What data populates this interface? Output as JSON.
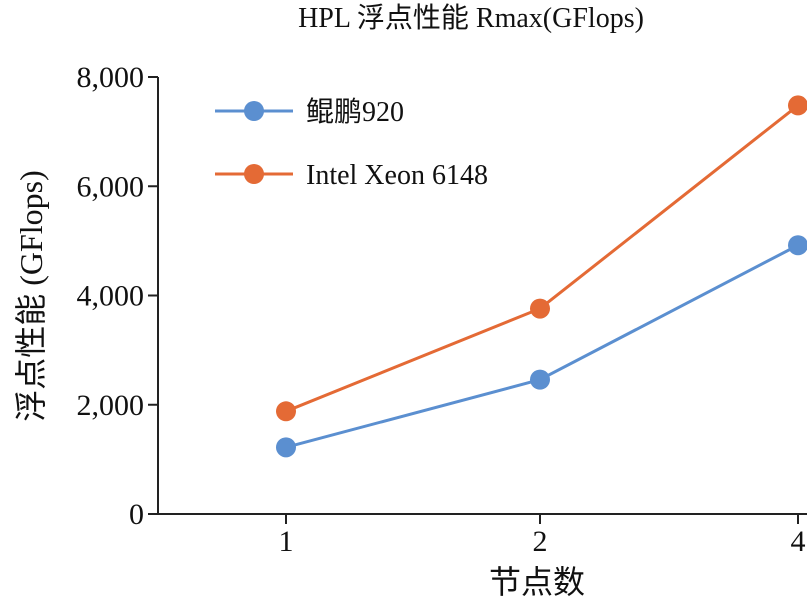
{
  "chart_data": {
    "type": "line",
    "title": "HPL 浮点性能 Rmax(GFlops)",
    "xlabel": "节点数",
    "ylabel": "浮点性能 (GFlops)",
    "categories": [
      "1",
      "2",
      "4"
    ],
    "ylim": [
      0,
      8000
    ],
    "yticks": [
      "0",
      "2,000",
      "4,000",
      "6,000",
      "8,000"
    ],
    "ytick_values": [
      0,
      2000,
      4000,
      6000,
      8000
    ],
    "grid": false,
    "legend_position": "top-left",
    "series": [
      {
        "name": "鲲鹏920",
        "color": "#5b8fd0",
        "values": [
          1220,
          2460,
          4920
        ]
      },
      {
        "name": "Intel Xeon 6148",
        "color": "#e46a35",
        "values": [
          1880,
          3760,
          7480
        ]
      }
    ]
  }
}
